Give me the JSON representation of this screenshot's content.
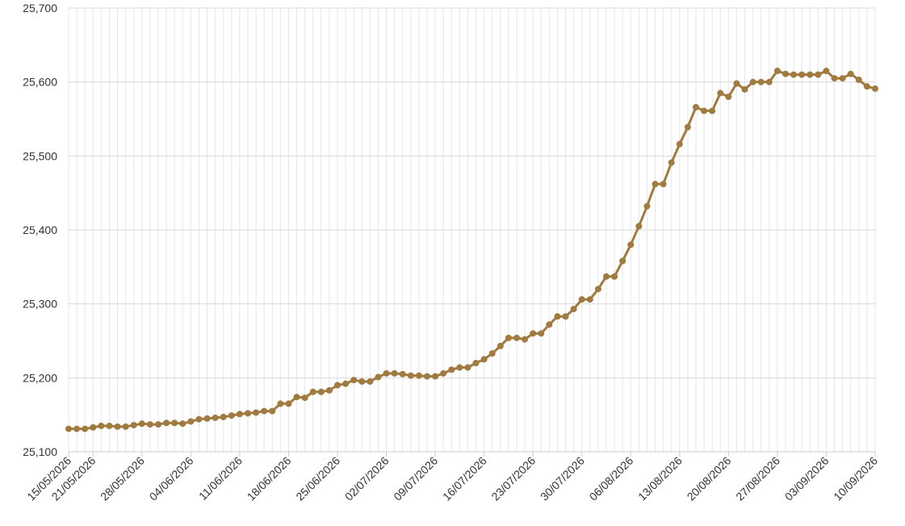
{
  "chart_data": {
    "type": "line",
    "title": "",
    "xlabel": "",
    "ylabel": "",
    "ylim": [
      25100,
      25700
    ],
    "yticks": [
      "25,700",
      "25,600",
      "25,500",
      "25,400",
      "25,300",
      "25,200",
      "25,100"
    ],
    "ytick_values": [
      25700,
      25600,
      25500,
      25400,
      25300,
      25200,
      25100
    ],
    "xtick_labels": [
      "15/05/2026",
      "21/05/2026",
      "28/05/2026",
      "04/06/2026",
      "11/06/2026",
      "18/06/2026",
      "25/06/2026",
      "02/07/2026",
      "09/07/2026",
      "16/07/2026",
      "23/07/2026",
      "30/07/2026",
      "06/08/2026",
      "13/08/2026",
      "20/08/2026",
      "27/08/2026",
      "03/09/2026",
      "10/09/2026"
    ],
    "xtick_indices": [
      0,
      3,
      9,
      15,
      21,
      27,
      33,
      39,
      45,
      51,
      57,
      63,
      69,
      75,
      81,
      87,
      93,
      99
    ],
    "grid": true,
    "series": [
      {
        "color": "#a07a3e",
        "values": [
          25131,
          25131,
          25131,
          25133,
          25135,
          25135,
          25134,
          25134,
          25136,
          25138,
          25137,
          25137,
          25139,
          25139,
          25138,
          25141,
          25144,
          25145,
          25146,
          25147,
          25149,
          25151,
          25152,
          25153,
          25155,
          25155,
          25165,
          25165,
          25174,
          25173,
          25181,
          25181,
          25183,
          25190,
          25192,
          25197,
          25195,
          25195,
          25201,
          25206,
          25206,
          25205,
          25203,
          25203,
          25202,
          25202,
          25206,
          25211,
          25214,
          25214,
          25220,
          25225,
          25233,
          25243,
          25254,
          25254,
          25252,
          25260,
          25260,
          25272,
          25283,
          25283,
          25293,
          25306,
          25306,
          25320,
          25337,
          25337,
          25358,
          25380,
          25405,
          25432,
          25462,
          25462,
          25491,
          25516,
          25539,
          25566,
          25561,
          25561,
          25585,
          25580,
          25598,
          25590,
          25600,
          25600,
          25600,
          25615,
          25611,
          25610,
          25610,
          25610,
          25610,
          25615,
          25605,
          25605,
          25611,
          25603,
          25594,
          25591
        ]
      }
    ]
  }
}
